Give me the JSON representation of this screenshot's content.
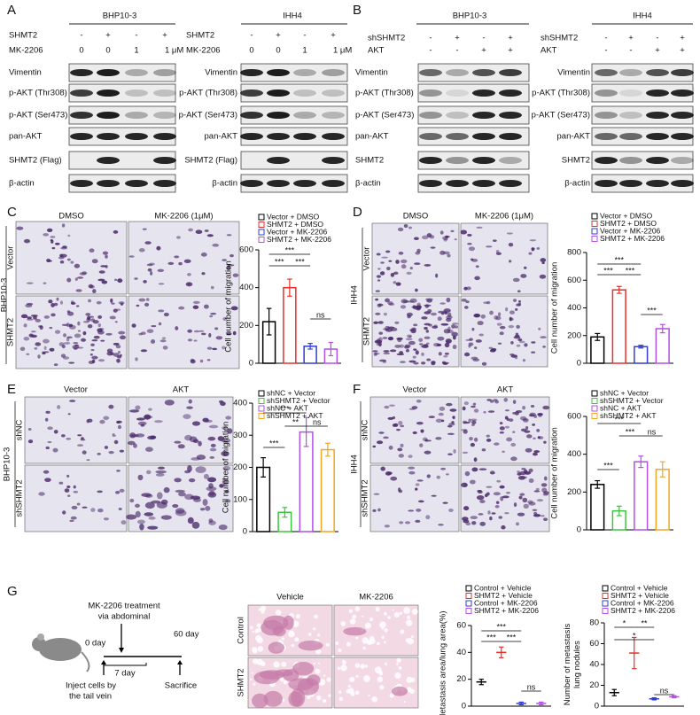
{
  "panels": {
    "A": {
      "label": "A",
      "blots": [
        {
          "cell_line": "BHP10-3",
          "conditions": [
            {
              "name": "SHMT2",
              "lanes": [
                "-",
                "+",
                "-",
                "+"
              ]
            },
            {
              "name": "MK-2206",
              "lanes": [
                "0",
                "0",
                "1",
                "1 μM"
              ]
            }
          ],
          "rows": [
            "Vimentin",
            "p-AKT (Thr308)",
            "p-AKT (Ser473)",
            "pan-AKT",
            "SHMT2 (Flag)",
            "β-actin"
          ]
        },
        {
          "cell_line": "IHH4",
          "conditions": [
            {
              "name": "SHMT2",
              "lanes": [
                "-",
                "+",
                "-",
                "+"
              ]
            },
            {
              "name": "MK-2206",
              "lanes": [
                "0",
                "0",
                "1",
                "1 μM"
              ]
            }
          ],
          "rows": [
            "Vimentin",
            "p-AKT (Thr308)",
            "p-AKT (Ser473)",
            "pan-AKT",
            "SHMT2 (Flag)",
            "β-actin"
          ]
        }
      ]
    },
    "B": {
      "label": "B",
      "blots": [
        {
          "cell_line": "BHP10-3",
          "conditions": [
            {
              "name": "shSHMT2",
              "lanes": [
                "-",
                "+",
                "-",
                "+"
              ]
            },
            {
              "name": "AKT",
              "lanes": [
                "-",
                "-",
                "+",
                "+"
              ]
            }
          ],
          "rows": [
            "Vimentin",
            "p-AKT (Thr308)",
            "p-AKT (Ser473)",
            "pan-AKT",
            "SHMT2",
            "β-actin"
          ]
        },
        {
          "cell_line": "IHH4",
          "conditions": [
            {
              "name": "shSHMT2",
              "lanes": [
                "-",
                "+",
                "-",
                "+"
              ]
            },
            {
              "name": "AKT",
              "lanes": [
                "-",
                "-",
                "+",
                "+"
              ]
            }
          ],
          "rows": [
            "Vimentin",
            "p-AKT (Thr308)",
            "p-AKT (Ser473)",
            "pan-AKT",
            "SHMT2",
            "β-actin"
          ]
        }
      ]
    },
    "C": {
      "label": "C",
      "columns": [
        "DMSO",
        "MK-2206 (1μM)"
      ],
      "rows": [
        "Vector",
        "SHMT2"
      ],
      "cell_line": "BHP10-3"
    },
    "D": {
      "label": "D",
      "columns": [
        "DMSO",
        "MK-2206 (1μM)"
      ],
      "rows": [
        "Vector",
        "SHMT2"
      ],
      "cell_line": "IHH4"
    },
    "E": {
      "label": "E",
      "columns": [
        "Vector",
        "AKT"
      ],
      "rows": [
        "shNC",
        "shSHMT2"
      ],
      "cell_line": "BHP10-3"
    },
    "F": {
      "label": "F",
      "columns": [
        "Vector",
        "AKT"
      ],
      "rows": [
        "shNC",
        "shSHMT2"
      ],
      "cell_line": "IHH4"
    },
    "G": {
      "label": "G",
      "schematic": {
        "treatment": "MK-2206 treatment",
        "route": "via abdominal",
        "day0": "0 day",
        "day7": "7 day",
        "day60": "60 day",
        "inject": [
          "Inject cells by",
          "the tail vein"
        ],
        "end": "Sacrifice"
      },
      "columns": [
        "Vehicle",
        "MK-2206"
      ],
      "rows": [
        "Control",
        "SHMT2"
      ]
    }
  },
  "chart_data": [
    {
      "type": "bar",
      "ylabel": "Cell number of migration",
      "ylim": [
        0,
        600
      ],
      "yticks": [
        0,
        200,
        400,
        600
      ],
      "series": [
        {
          "name": "Vector + DMSO",
          "color": "#000000",
          "values": [
            220
          ],
          "errors": [
            70
          ]
        },
        {
          "name": "SHMT2 + DMSO",
          "color": "#e8302a",
          "values": [
            400
          ],
          "errors": [
            45
          ]
        },
        {
          "name": "Vector + MK-2206",
          "color": "#2f3fd6",
          "values": [
            90
          ],
          "errors": [
            15
          ]
        },
        {
          "name": "SHMT2 + MK-2206",
          "color": "#b44fe8",
          "values": [
            75
          ],
          "errors": [
            35
          ]
        }
      ],
      "annotations": [
        "***",
        "***",
        "***",
        "ns"
      ]
    },
    {
      "type": "bar",
      "ylabel": "Cell number of migration",
      "ylim": [
        0,
        800
      ],
      "yticks": [
        0,
        200,
        400,
        600,
        800
      ],
      "series": [
        {
          "name": "Vector + DMSO",
          "color": "#000000",
          "values": [
            190
          ],
          "errors": [
            25
          ]
        },
        {
          "name": "SHMT2 + DMSO",
          "color": "#e8302a",
          "values": [
            530
          ],
          "errors": [
            25
          ]
        },
        {
          "name": "Vector + MK-2206",
          "color": "#2f3fd6",
          "values": [
            120
          ],
          "errors": [
            10
          ]
        },
        {
          "name": "SHMT2 + MK-2206",
          "color": "#b44fe8",
          "values": [
            250
          ],
          "errors": [
            30
          ]
        }
      ],
      "annotations": [
        "***",
        "***",
        "***",
        "***"
      ]
    },
    {
      "type": "bar",
      "ylabel": "Cell number of migration",
      "ylim": [
        0,
        400
      ],
      "yticks": [
        0,
        100,
        200,
        300,
        400
      ],
      "series": [
        {
          "name": "shNC + Vector",
          "color": "#000000",
          "values": [
            200
          ],
          "errors": [
            30
          ]
        },
        {
          "name": "shSHMT2 + Vector",
          "color": "#3cc43c",
          "values": [
            60
          ],
          "errors": [
            15
          ]
        },
        {
          "name": "shNC + AKT",
          "color": "#b44fe8",
          "values": [
            310
          ],
          "errors": [
            45
          ]
        },
        {
          "name": "shSHMT2 + AKT",
          "color": "#f5a623",
          "values": [
            255
          ],
          "errors": [
            20
          ]
        }
      ],
      "annotations": [
        "***",
        "**",
        "ns",
        "***"
      ]
    },
    {
      "type": "bar",
      "ylabel": "Cell number of migration",
      "ylim": [
        0,
        600
      ],
      "yticks": [
        0,
        200,
        400,
        600
      ],
      "series": [
        {
          "name": "shNC + Vector",
          "color": "#000000",
          "values": [
            240
          ],
          "errors": [
            20
          ]
        },
        {
          "name": "shSHMT2 + Vector",
          "color": "#3cc43c",
          "values": [
            100
          ],
          "errors": [
            25
          ]
        },
        {
          "name": "shNC + AKT",
          "color": "#b44fe8",
          "values": [
            360
          ],
          "errors": [
            30
          ]
        },
        {
          "name": "shSHMT2 + AKT",
          "color": "#f5a623",
          "values": [
            320
          ],
          "errors": [
            40
          ]
        }
      ],
      "annotations": [
        "***",
        "***",
        "ns",
        "***"
      ]
    },
    {
      "type": "dot",
      "ylabel": [
        "Metastasis area/lung area(%)"
      ],
      "ylim": [
        0,
        60
      ],
      "yticks": [
        0,
        20,
        40,
        60
      ],
      "series": [
        {
          "name": "Control + Vehicle",
          "color": "#000000",
          "values": [
            18
          ],
          "errors": [
            2
          ]
        },
        {
          "name": "SHMT2 + Vehicle",
          "color": "#e8302a",
          "values": [
            40
          ],
          "errors": [
            4
          ]
        },
        {
          "name": "Control + MK-2206",
          "color": "#2f3fd6",
          "values": [
            2
          ],
          "errors": [
            1
          ]
        },
        {
          "name": "SHMT2 + MK-2206",
          "color": "#b44fe8",
          "values": [
            2
          ],
          "errors": [
            1
          ]
        }
      ],
      "annotations": [
        "***",
        "***",
        "***",
        "ns"
      ]
    },
    {
      "type": "dot",
      "ylabel": [
        "Number of metastasis",
        "lung nodules"
      ],
      "ylim": [
        0,
        80
      ],
      "yticks": [
        0,
        20,
        40,
        60,
        80
      ],
      "series": [
        {
          "name": "Control + Vehicle",
          "color": "#000000",
          "values": [
            13
          ],
          "errors": [
            3
          ]
        },
        {
          "name": "SHMT2 + Vehicle",
          "color": "#e8302a",
          "values": [
            51
          ],
          "errors": [
            15
          ]
        },
        {
          "name": "Control + MK-2206",
          "color": "#2f3fd6",
          "values": [
            7
          ],
          "errors": [
            1
          ]
        },
        {
          "name": "SHMT2 + MK-2206",
          "color": "#b44fe8",
          "values": [
            9
          ],
          "errors": [
            1
          ]
        }
      ],
      "annotations": [
        "*",
        "**",
        "*",
        "ns"
      ]
    }
  ]
}
